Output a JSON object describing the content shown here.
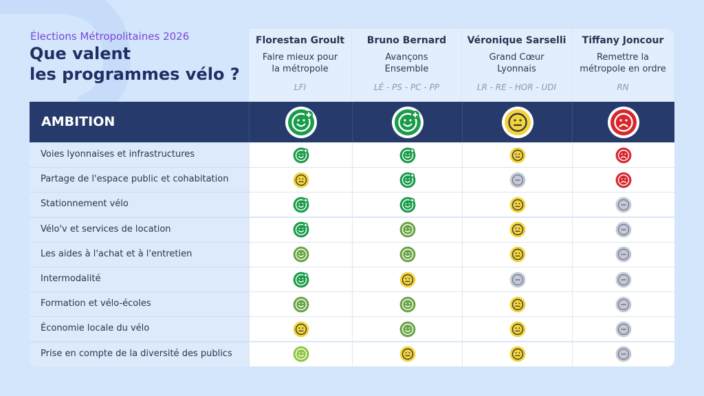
{
  "header": {
    "kicker": "Élections Métropolitaines 2026",
    "title": [
      "Que valent",
      "les programmes vélo ?"
    ]
  },
  "candidates": [
    {
      "name": "Florestan Groult",
      "program": [
        "Faire mieux pour",
        "la métropole"
      ],
      "parties": "LFI"
    },
    {
      "name": "Bruno Bernard",
      "program": [
        "Avançons",
        "Ensemble"
      ],
      "parties": "LÉ - PS - PC - PP"
    },
    {
      "name": "Véronique Sarselli",
      "program": [
        "Grand Cœur",
        "Lyonnais"
      ],
      "parties": "LR - RE - HOR - UDI"
    },
    {
      "name": "Tiffany Joncour",
      "program": [
        "Remettre la",
        "métropole en ordre"
      ],
      "parties": "RN"
    }
  ],
  "summary": {
    "label": "AMBITION",
    "ratings": [
      5,
      5,
      2,
      1
    ]
  },
  "rows": [
    {
      "label": "Voies lyonnaises et infrastructures",
      "ratings": [
        5,
        5,
        2,
        1
      ]
    },
    {
      "label": "Partage de l'espace public et cohabitation",
      "ratings": [
        2,
        5,
        0,
        1
      ]
    },
    {
      "label": "Stationnement vélo",
      "ratings": [
        5,
        5,
        2,
        0
      ]
    },
    {
      "label": "Vélo'v et services de location",
      "ratings": [
        5,
        4,
        2,
        0
      ]
    },
    {
      "label": "Les aides à l'achat et à l'entretien",
      "ratings": [
        4,
        4,
        2,
        0
      ]
    },
    {
      "label": "Intermodalité",
      "ratings": [
        5,
        2,
        0,
        0
      ]
    },
    {
      "label": "Formation et vélo-écoles",
      "ratings": [
        4,
        4,
        2,
        0
      ]
    },
    {
      "label": "Économie locale du vélo",
      "ratings": [
        2,
        4,
        2,
        0
      ]
    },
    {
      "label": "Prise en compte de la diversité des publics",
      "ratings": [
        3,
        2,
        2,
        0
      ]
    }
  ]
}
